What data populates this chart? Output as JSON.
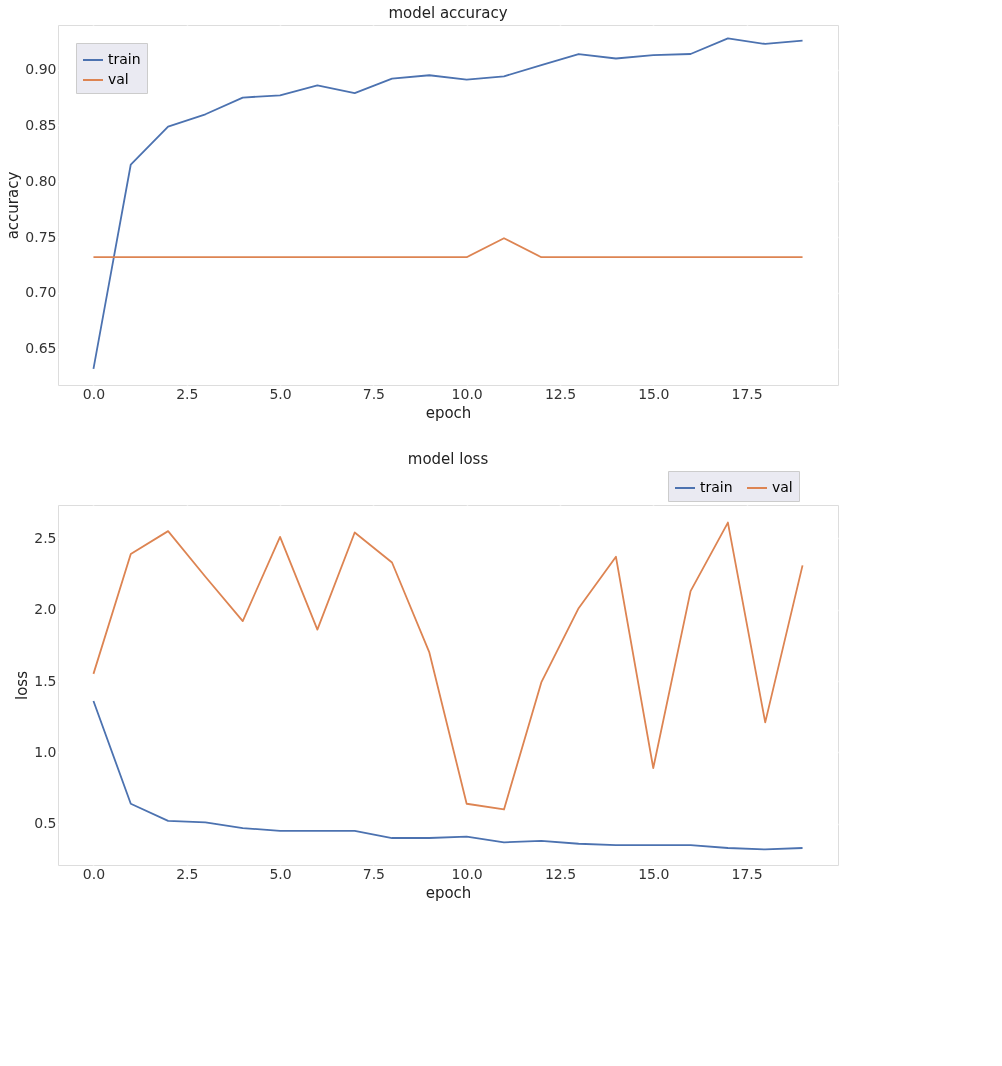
{
  "chart_data": [
    {
      "type": "line",
      "title": "model accuracy",
      "xlabel": "epoch",
      "ylabel": "accuracy",
      "x": [
        0,
        1,
        2,
        3,
        4,
        5,
        6,
        7,
        8,
        9,
        10,
        11,
        12,
        13,
        14,
        15,
        16,
        17,
        18,
        19
      ],
      "series": [
        {
          "name": "train",
          "color": "#4c72b0",
          "values": [
            0.632,
            0.815,
            0.849,
            0.86,
            0.875,
            0.877,
            0.886,
            0.879,
            0.892,
            0.895,
            0.891,
            0.894,
            0.904,
            0.914,
            0.91,
            0.913,
            0.914,
            0.928,
            0.923,
            0.926
          ]
        },
        {
          "name": "val",
          "color": "#dd8452",
          "values": [
            0.732,
            0.732,
            0.732,
            0.732,
            0.732,
            0.732,
            0.732,
            0.732,
            0.732,
            0.732,
            0.732,
            0.749,
            0.732,
            0.732,
            0.732,
            0.732,
            0.732,
            0.732,
            0.732,
            0.732
          ]
        }
      ],
      "xlim": [
        -0.95,
        19.95
      ],
      "ylim": [
        0.6175,
        0.94
      ],
      "xticks": [
        {
          "value": 0,
          "label": "0.0"
        },
        {
          "value": 2.5,
          "label": "2.5"
        },
        {
          "value": 5,
          "label": "5.0"
        },
        {
          "value": 7.5,
          "label": "7.5"
        },
        {
          "value": 10,
          "label": "10.0"
        },
        {
          "value": 12.5,
          "label": "12.5"
        },
        {
          "value": 15,
          "label": "15.0"
        },
        {
          "value": 17.5,
          "label": "17.5"
        }
      ],
      "yticks": [
        {
          "value": 0.65,
          "label": "0.65"
        },
        {
          "value": 0.7,
          "label": "0.70"
        },
        {
          "value": 0.75,
          "label": "0.75"
        },
        {
          "value": 0.8,
          "label": "0.80"
        },
        {
          "value": 0.85,
          "label": "0.85"
        },
        {
          "value": 0.9,
          "label": "0.90"
        }
      ],
      "grid": true,
      "legend": "top left",
      "marker": "none",
      "line_style": "solid"
    },
    {
      "type": "line",
      "title": "model loss",
      "xlabel": "epoch",
      "ylabel": "loss",
      "x": [
        0,
        1,
        2,
        3,
        4,
        5,
        6,
        7,
        8,
        9,
        10,
        11,
        12,
        13,
        14,
        15,
        16,
        17,
        18,
        19
      ],
      "series": [
        {
          "name": "train",
          "color": "#4c72b0",
          "values": [
            1.36,
            0.64,
            0.52,
            0.51,
            0.47,
            0.45,
            0.45,
            0.45,
            0.4,
            0.4,
            0.41,
            0.37,
            0.38,
            0.36,
            0.35,
            0.35,
            0.35,
            0.33,
            0.32,
            0.33
          ]
        },
        {
          "name": "val",
          "color": "#dd8452",
          "values": [
            1.55,
            2.39,
            2.55,
            2.23,
            1.92,
            2.51,
            1.86,
            2.54,
            2.33,
            1.7,
            0.64,
            0.6,
            1.49,
            2.01,
            2.37,
            0.89,
            2.13,
            2.61,
            1.21,
            2.31
          ]
        }
      ],
      "xlim": [
        -0.95,
        19.95
      ],
      "ylim": [
        0.211,
        2.733
      ],
      "xticks": [
        {
          "value": 0,
          "label": "0.0"
        },
        {
          "value": 2.5,
          "label": "2.5"
        },
        {
          "value": 5,
          "label": "5.0"
        },
        {
          "value": 7.5,
          "label": "7.5"
        },
        {
          "value": 10,
          "label": "10.0"
        },
        {
          "value": 12.5,
          "label": "12.5"
        },
        {
          "value": 15,
          "label": "15.0"
        },
        {
          "value": 17.5,
          "label": "17.5"
        }
      ],
      "yticks": [
        {
          "value": 0.5,
          "label": "0.5"
        },
        {
          "value": 1,
          "label": "1.0"
        },
        {
          "value": 1.5,
          "label": "1.5"
        },
        {
          "value": 2,
          "label": "2.0"
        },
        {
          "value": 2.5,
          "label": "2.5"
        }
      ],
      "grid": true,
      "legend": "top right",
      "marker": "none",
      "line_style": "solid"
    }
  ]
}
